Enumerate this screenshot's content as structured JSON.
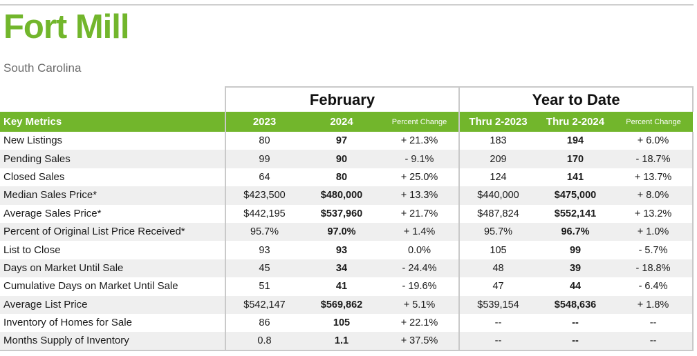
{
  "header": {
    "title": "Fort Mill",
    "subtitle": "South Carolina",
    "title_color": "#72b62c"
  },
  "groups": {
    "february": "February",
    "ytd": "Year to Date"
  },
  "columns": {
    "metric": "Key Metrics",
    "feb_2023": "2023",
    "feb_2024": "2024",
    "feb_pct": "Percent Change",
    "ytd_2023": "Thru 2-2023",
    "ytd_2024": "Thru 2-2024",
    "ytd_pct": "Percent Change"
  },
  "rows": [
    {
      "metric": "New Listings",
      "feb_2023": "80",
      "feb_2024": "97",
      "feb_pct": "+ 21.3%",
      "ytd_2023": "183",
      "ytd_2024": "194",
      "ytd_pct": "+ 6.0%"
    },
    {
      "metric": "Pending Sales",
      "feb_2023": "99",
      "feb_2024": "90",
      "feb_pct": "- 9.1%",
      "ytd_2023": "209",
      "ytd_2024": "170",
      "ytd_pct": "- 18.7%"
    },
    {
      "metric": "Closed Sales",
      "feb_2023": "64",
      "feb_2024": "80",
      "feb_pct": "+ 25.0%",
      "ytd_2023": "124",
      "ytd_2024": "141",
      "ytd_pct": "+ 13.7%"
    },
    {
      "metric": "Median Sales Price*",
      "feb_2023": "$423,500",
      "feb_2024": "$480,000",
      "feb_pct": "+ 13.3%",
      "ytd_2023": "$440,000",
      "ytd_2024": "$475,000",
      "ytd_pct": "+ 8.0%"
    },
    {
      "metric": "Average Sales Price*",
      "feb_2023": "$442,195",
      "feb_2024": "$537,960",
      "feb_pct": "+ 21.7%",
      "ytd_2023": "$487,824",
      "ytd_2024": "$552,141",
      "ytd_pct": "+ 13.2%"
    },
    {
      "metric": "Percent of Original List Price Received*",
      "feb_2023": "95.7%",
      "feb_2024": "97.0%",
      "feb_pct": "+ 1.4%",
      "ytd_2023": "95.7%",
      "ytd_2024": "96.7%",
      "ytd_pct": "+ 1.0%"
    },
    {
      "metric": "List to Close",
      "feb_2023": "93",
      "feb_2024": "93",
      "feb_pct": "0.0%",
      "ytd_2023": "105",
      "ytd_2024": "99",
      "ytd_pct": "- 5.7%"
    },
    {
      "metric": "Days on Market Until Sale",
      "feb_2023": "45",
      "feb_2024": "34",
      "feb_pct": "- 24.4%",
      "ytd_2023": "48",
      "ytd_2024": "39",
      "ytd_pct": "- 18.8%"
    },
    {
      "metric": "Cumulative Days on Market Until Sale",
      "feb_2023": "51",
      "feb_2024": "41",
      "feb_pct": "- 19.6%",
      "ytd_2023": "47",
      "ytd_2024": "44",
      "ytd_pct": "- 6.4%"
    },
    {
      "metric": "Average List Price",
      "feb_2023": "$542,147",
      "feb_2024": "$569,862",
      "feb_pct": "+ 5.1%",
      "ytd_2023": "$539,154",
      "ytd_2024": "$548,636",
      "ytd_pct": "+ 1.8%"
    },
    {
      "metric": "Inventory of Homes for Sale",
      "feb_2023": "86",
      "feb_2024": "105",
      "feb_pct": "+ 22.1%",
      "ytd_2023": "--",
      "ytd_2024": "--",
      "ytd_pct": "--"
    },
    {
      "metric": "Months Supply of Inventory",
      "feb_2023": "0.8",
      "feb_2024": "1.1",
      "feb_pct": "+ 37.5%",
      "ytd_2023": "--",
      "ytd_2024": "--",
      "ytd_pct": "--"
    }
  ]
}
